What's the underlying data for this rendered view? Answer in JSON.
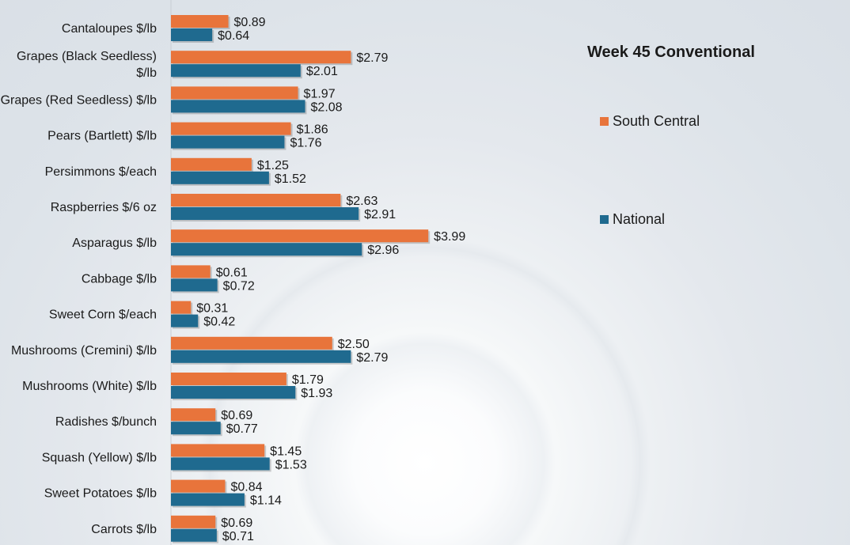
{
  "colors": {
    "south_central": "#e8743b",
    "national": "#1f6a8f"
  },
  "chart_data": {
    "type": "bar",
    "orientation": "horizontal",
    "title": "Week 45 Conventional",
    "categories": [
      "Cantaloupes $/lb",
      "Grapes (Black Seedless) $/lb",
      "Grapes (Red Seedless) $/lb",
      "Pears (Bartlett) $/lb",
      "Persimmons $/each",
      "Raspberries $/6 oz",
      "Asparagus $/lb",
      "Cabbage $/lb",
      "Sweet Corn $/each",
      "Mushrooms (Cremini) $/lb",
      "Mushrooms (White) $/lb",
      "Radishes $/bunch",
      "Squash (Yellow) $/lb",
      "Sweet Potatoes $/lb",
      "Carrots $/lb"
    ],
    "category_lines": [
      [
        "Cantaloupes $/lb"
      ],
      [
        "Grapes (Black Seedless)",
        "$/lb"
      ],
      [
        "Grapes (Red Seedless) $/lb"
      ],
      [
        "Pears (Bartlett) $/lb"
      ],
      [
        "Persimmons $/each"
      ],
      [
        "Raspberries $/6 oz"
      ],
      [
        "Asparagus $/lb"
      ],
      [
        "Cabbage $/lb"
      ],
      [
        "Sweet Corn $/each"
      ],
      [
        "Mushrooms (Cremini) $/lb"
      ],
      [
        "Mushrooms (White) $/lb"
      ],
      [
        "Radishes $/bunch"
      ],
      [
        "Squash (Yellow) $/lb"
      ],
      [
        "Sweet Potatoes $/lb"
      ],
      [
        "Carrots $/lb"
      ]
    ],
    "series": [
      {
        "name": "South Central",
        "values": [
          0.89,
          2.79,
          1.97,
          1.86,
          1.25,
          2.63,
          3.99,
          0.61,
          0.31,
          2.5,
          1.79,
          0.69,
          1.45,
          0.84,
          0.69
        ],
        "labels": [
          "$0.89",
          "$2.79",
          "$1.97",
          "$1.86",
          "$1.25",
          "$2.63",
          "$3.99",
          "$0.61",
          "$0.31",
          "$2.50",
          "$1.79",
          "$0.69",
          "$1.45",
          "$0.84",
          "$0.69"
        ]
      },
      {
        "name": "National",
        "values": [
          0.64,
          2.01,
          2.08,
          1.76,
          1.52,
          2.91,
          2.96,
          0.72,
          0.42,
          2.79,
          1.93,
          0.77,
          1.53,
          1.14,
          0.71
        ],
        "labels": [
          "$0.64",
          "$2.01",
          "$2.08",
          "$1.76",
          "$1.52",
          "$2.91",
          "$2.96",
          "$0.72",
          "$0.42",
          "$2.79",
          "$1.93",
          "$0.77",
          "$1.53",
          "$1.14",
          "$0.71"
        ]
      }
    ],
    "xlim": [
      0,
      4.5
    ],
    "grid": false,
    "legend": "right"
  },
  "legend": {
    "title": "Week 45 Conventional",
    "items": [
      {
        "label": "South Central"
      },
      {
        "label": "National"
      }
    ]
  }
}
